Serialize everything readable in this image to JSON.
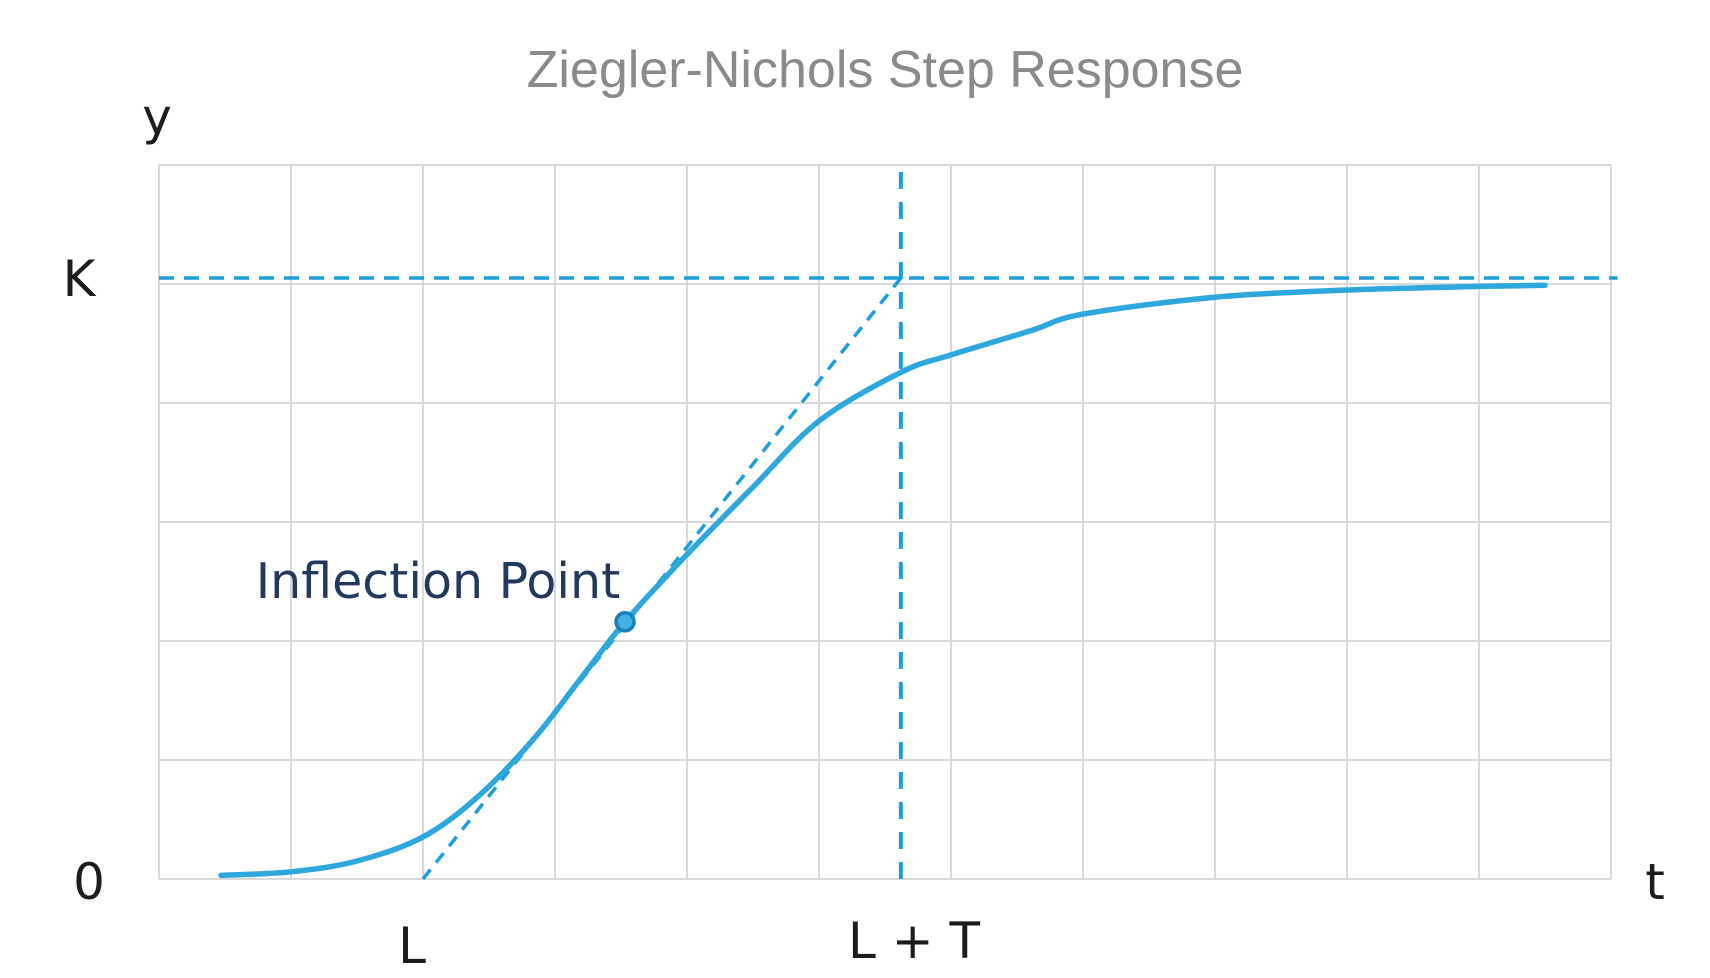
{
  "chart_data": {
    "type": "line",
    "title": "Ziegler-Nichols Step Response",
    "xlabel": "t",
    "ylabel": "y",
    "grid": true,
    "legend": "none",
    "axes": {
      "x_range_grid_units": [
        0,
        11
      ],
      "y_range_K_units": [
        0,
        1.2
      ],
      "grid_cols": 11,
      "grid_rows": 6,
      "K_value": 1.0,
      "L_time": 2.0,
      "L_plus_T_time": 5.62,
      "T_time": 3.62
    },
    "y_tick_labels": {
      "k": "K",
      "zero": "0"
    },
    "x_tick_labels": {
      "l": "L",
      "l_plus_t": "L + T"
    },
    "annotations": {
      "inflection_label": "Inflection Point"
    },
    "series": [
      {
        "name": "step-response-curve",
        "points": [
          [
            0.47,
            0.006
          ],
          [
            1.0,
            0.012
          ],
          [
            1.5,
            0.03
          ],
          [
            2.0,
            0.07
          ],
          [
            2.43,
            0.14
          ],
          [
            2.85,
            0.236
          ],
          [
            3.2,
            0.335
          ],
          [
            3.53,
            0.428
          ],
          [
            4.0,
            0.54
          ],
          [
            4.5,
            0.652
          ],
          [
            5.0,
            0.762
          ],
          [
            5.62,
            0.843
          ],
          [
            6.0,
            0.872
          ],
          [
            6.6,
            0.912
          ],
          [
            7.0,
            0.94
          ],
          [
            8.0,
            0.968
          ],
          [
            9.0,
            0.98
          ],
          [
            10.0,
            0.986
          ],
          [
            10.5,
            0.988
          ]
        ]
      }
    ],
    "tangent_line": {
      "from": [
        2.0,
        0.0
      ],
      "to": [
        5.62,
        1.0
      ]
    },
    "k_dashed_line": {
      "y": 1.0,
      "x_from": 0,
      "x_to": 11.05
    },
    "vertical_dashed_line": {
      "x": 5.62,
      "y_from": 0,
      "y_to": 1.188
    },
    "inflection_point": {
      "x": 3.53,
      "y": 0.428
    },
    "colors": {
      "curve": "#2ea7dc",
      "dashed": "#1e9ed8",
      "grid": "#d9d9d9",
      "title": "#8a8a8a",
      "axis_text": "#1c1c1c",
      "annotation_text": "#22395c",
      "marker_fill": "#45b1e2",
      "marker_stroke": "#1a7fb8",
      "background": "#ffffff"
    }
  }
}
